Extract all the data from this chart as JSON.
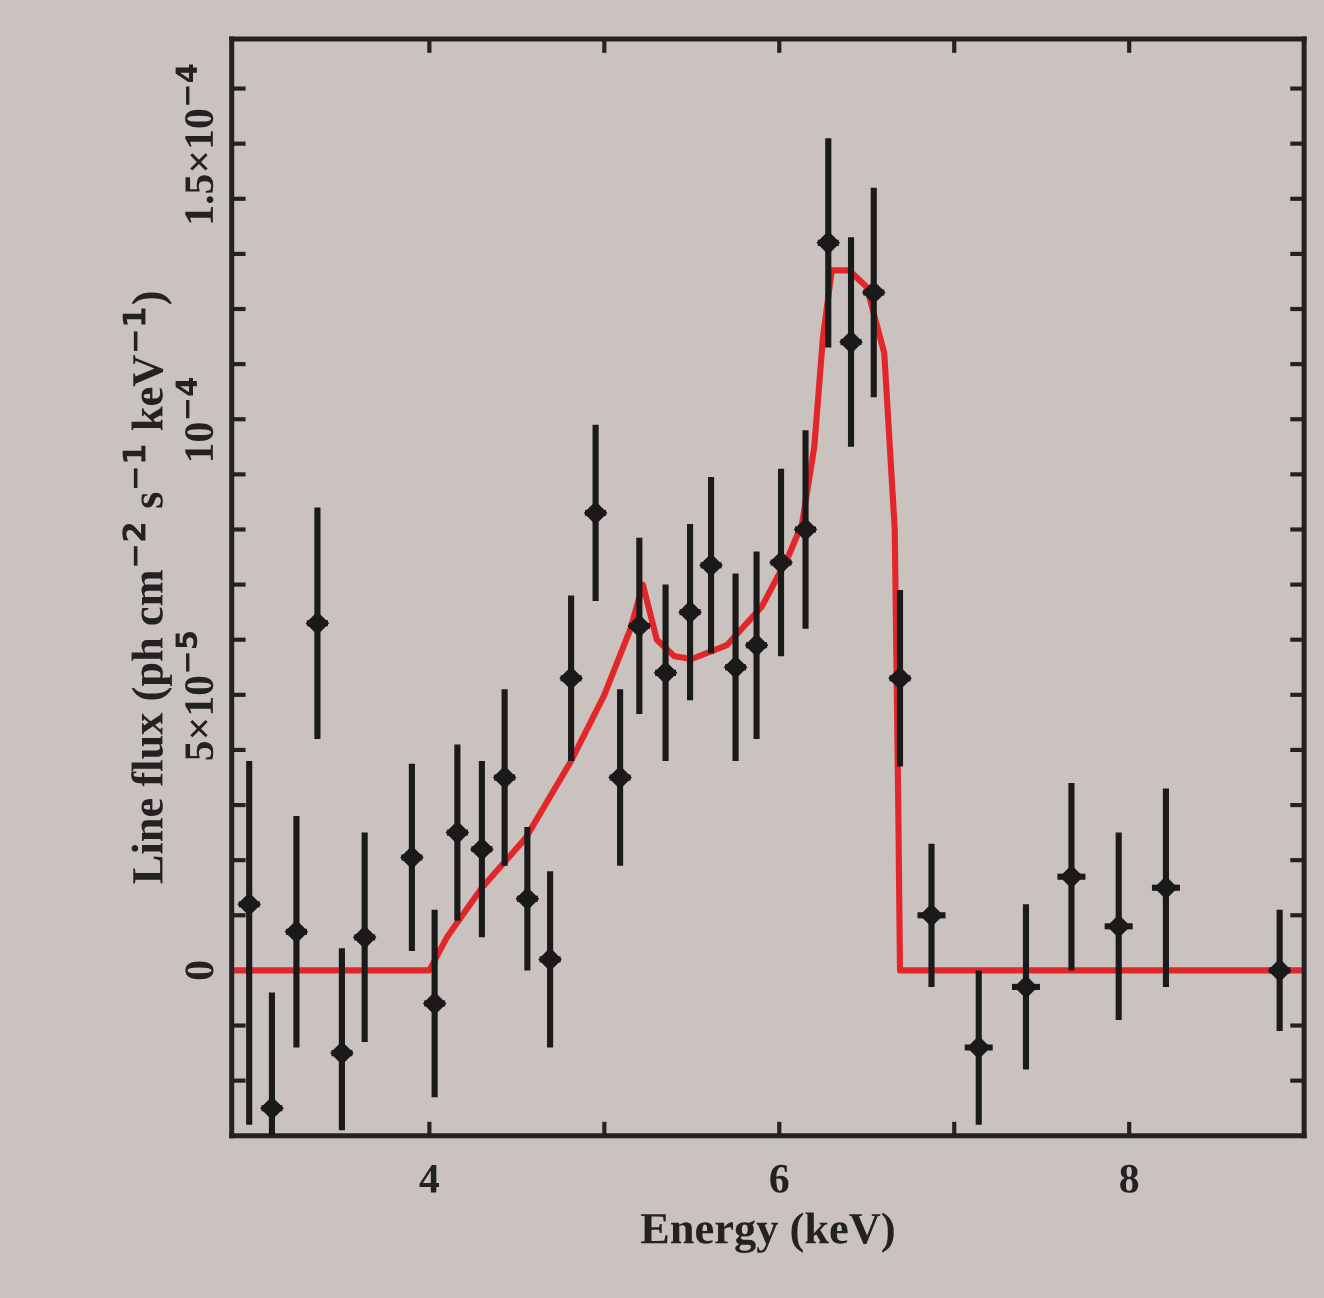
{
  "chart_data": {
    "type": "scatter",
    "xlabel": "Energy (keV)",
    "ylabel": "Line flux (ph cm$^{−2}$ s$^{−1}$ keV$^{−1}$)",
    "xlim": [
      2.87,
      9.0
    ],
    "ylim": [
      -3e-05,
      0.000169
    ],
    "xticks": [
      4,
      {
        "value": 5,
        "label": null
      },
      6,
      {
        "value": 7,
        "label": null
      },
      8
    ],
    "yticks": [
      {
        "value": -2e-05,
        "label": null
      },
      {
        "value": -1e-05,
        "label": null
      },
      {
        "value": 0,
        "label": "0"
      },
      {
        "value": 1e-05,
        "label": null
      },
      {
        "value": 2e-05,
        "label": null
      },
      {
        "value": 3e-05,
        "label": null
      },
      {
        "value": 4e-05,
        "label": null
      },
      {
        "value": 5e-05,
        "label": "5×10$^{−5}$"
      },
      {
        "value": 6e-05,
        "label": null
      },
      {
        "value": 7e-05,
        "label": null
      },
      {
        "value": 8e-05,
        "label": null
      },
      {
        "value": 9e-05,
        "label": null
      },
      {
        "value": 0.0001,
        "label": "10$^{−4}$"
      },
      {
        "value": 0.00011,
        "label": null
      },
      {
        "value": 0.00012,
        "label": null
      },
      {
        "value": 0.00013,
        "label": null
      },
      {
        "value": 0.00014,
        "label": null
      },
      {
        "value": 0.00015,
        "label": "1.5×10$^{−4}$"
      },
      {
        "value": 0.00016,
        "label": null
      }
    ],
    "grid": false,
    "legend": false,
    "series": [
      {
        "color": "#1a1a1a",
        "marker": "diamond",
        "x": [
          2.97,
          3.1,
          3.24,
          3.36,
          3.5,
          3.63,
          3.9,
          4.03,
          4.16,
          4.3,
          4.43,
          4.56,
          4.69,
          4.81,
          4.95,
          5.09,
          5.2,
          5.35,
          5.49,
          5.61,
          5.75,
          5.87,
          6.01,
          6.15,
          6.28,
          6.41,
          6.54,
          6.69,
          6.87,
          7.14,
          7.41,
          7.67,
          7.94,
          8.21,
          8.86
        ],
        "values": [
          1.2e-05,
          -2.5e-05,
          7e-06,
          6.3e-05,
          -1.5e-05,
          6e-06,
          2.05e-05,
          -6e-06,
          2.5e-05,
          2.2e-05,
          3.5e-05,
          1.3e-05,
          2e-06,
          5.3e-05,
          8.3e-05,
          3.5e-05,
          6.25e-05,
          5.4e-05,
          6.5e-05,
          7.35e-05,
          5.5e-05,
          5.9e-05,
          7.4e-05,
          8e-05,
          0.000132,
          0.000114,
          0.000123,
          5.3e-05,
          1e-05,
          -1.4e-05,
          -3e-06,
          1.7e-05,
          8e-06,
          1.5e-05,
          0
        ],
        "errors": [
          [
            -2.8e-05,
            3.8e-05
          ],
          [
            -3e-05,
            -4e-06
          ],
          2.1e-05,
          2.1e-05,
          [
            -2.9e-05,
            4e-06
          ],
          1.9e-05,
          1.7e-05,
          1.7e-05,
          1.6e-05,
          1.6e-05,
          1.6e-05,
          1.3e-05,
          1.6e-05,
          1.5e-05,
          1.6e-05,
          1.6e-05,
          1.6e-05,
          1.6e-05,
          1.6e-05,
          1.6e-05,
          1.7e-05,
          1.7e-05,
          1.7e-05,
          1.8e-05,
          1.9e-05,
          1.9e-05,
          1.9e-05,
          1.6e-05,
          1.3e-05,
          1.4e-05,
          1.5e-05,
          1.7e-05,
          1.7e-05,
          1.8e-05,
          1.1e-05
        ],
        "xerrors": [
          0.06,
          0.06,
          0.06,
          0.06,
          0.06,
          0.06,
          0.06,
          0.06,
          0.06,
          0.06,
          0.06,
          0.06,
          0.06,
          0.06,
          0.06,
          0.06,
          0.06,
          0.06,
          0.06,
          0.06,
          0.06,
          0.06,
          0.06,
          0.06,
          0.06,
          0.06,
          0.06,
          0.06,
          0.08,
          0.08,
          0.08,
          0.08,
          0.08,
          0.08,
          0.06
        ]
      },
      {
        "type": "line",
        "color": "#e3262a",
        "line_style": "solid",
        "marker": "none",
        "x": [
          2.87,
          4.0,
          4.1,
          4.3,
          4.55,
          4.81,
          5.0,
          5.15,
          5.22,
          5.3,
          5.4,
          5.5,
          5.7,
          5.9,
          6.05,
          6.13,
          6.2,
          6.25,
          6.3,
          6.4,
          6.5,
          6.6,
          6.66,
          6.68,
          6.69,
          9.0
        ],
        "values": [
          0,
          0,
          6e-06,
          1.5e-05,
          2.4e-05,
          3.8e-05,
          5e-05,
          6.2e-05,
          7e-05,
          6e-05,
          5.7e-05,
          5.65e-05,
          5.9e-05,
          6.6e-05,
          7.5e-05,
          8.1e-05,
          9.5e-05,
          0.000115,
          0.000127,
          0.000127,
          0.000124,
          0.000112,
          8e-05,
          3e-05,
          0,
          0
        ]
      }
    ]
  }
}
